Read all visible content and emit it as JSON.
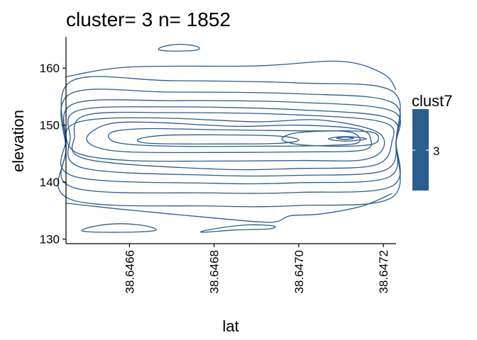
{
  "chart_data": {
    "type": "contour",
    "title": "cluster= 3 n= 1852",
    "xlabel": "lat",
    "ylabel": "elevation",
    "xlim": [
      38.64645,
      38.64723
    ],
    "ylim": [
      129.2,
      165.5
    ],
    "x_ticks": [
      38.6466,
      38.6468,
      38.647,
      38.6472
    ],
    "x_tick_labels": [
      "38.6466",
      "38.6468",
      "38.6470",
      "38.6472"
    ],
    "y_ticks": [
      130,
      140,
      150,
      160
    ],
    "y_tick_labels": [
      "130",
      "140",
      "150",
      "160"
    ],
    "grid": false,
    "legend": {
      "title": "clust7",
      "placement": "right",
      "entries": [
        {
          "label": "3",
          "color": "#2B5D8E"
        }
      ]
    },
    "series_color": "#2B5D8E",
    "density_peak": {
      "lat": 38.64711,
      "elevation": 147.6
    },
    "contours": [
      {
        "level": 1,
        "points": [
          [
            38.64645,
            148
          ],
          [
            38.64648,
            145
          ],
          [
            38.6466,
            143.8
          ],
          [
            38.6468,
            143.7
          ],
          [
            38.647,
            143.8
          ],
          [
            38.64715,
            143.9
          ],
          [
            38.6472,
            146
          ],
          [
            38.64718,
            149
          ],
          [
            38.64705,
            150.9
          ],
          [
            38.6469,
            150.6
          ],
          [
            38.6467,
            151.2
          ],
          [
            38.64655,
            151.2
          ],
          [
            38.64647,
            150.3
          ]
        ]
      },
      {
        "level": 2,
        "points": [
          [
            38.6465,
            148
          ],
          [
            38.64652,
            146.2
          ],
          [
            38.6466,
            145.3
          ],
          [
            38.6468,
            145.2
          ],
          [
            38.647,
            145.3
          ],
          [
            38.64715,
            145.6
          ],
          [
            38.64717,
            147.5
          ],
          [
            38.64714,
            149.3
          ],
          [
            38.647,
            150
          ],
          [
            38.64685,
            149.8
          ],
          [
            38.64665,
            150.5
          ],
          [
            38.64655,
            150.2
          ]
        ]
      },
      {
        "level": 3,
        "points": [
          [
            38.64655,
            148
          ],
          [
            38.64658,
            146.8
          ],
          [
            38.6467,
            146.3
          ],
          [
            38.6469,
            146.3
          ],
          [
            38.64705,
            146.4
          ],
          [
            38.64714,
            146.9
          ],
          [
            38.64712,
            148.8
          ],
          [
            38.647,
            149
          ],
          [
            38.6468,
            149.2
          ],
          [
            38.64665,
            149.4
          ],
          [
            38.64657,
            149
          ]
        ]
      },
      {
        "level": 4,
        "points": [
          [
            38.64662,
            147.5
          ],
          [
            38.64665,
            146.8
          ],
          [
            38.6468,
            146.7
          ],
          [
            38.64695,
            146.8
          ],
          [
            38.647,
            147.4
          ],
          [
            38.64695,
            148.1
          ],
          [
            38.6468,
            148.3
          ],
          [
            38.64668,
            148.2
          ]
        ]
      },
      {
        "level": 5,
        "points": [
          [
            38.64696,
            147.6
          ],
          [
            38.647,
            146.6
          ],
          [
            38.64711,
            146.3
          ],
          [
            38.64718,
            146.8
          ],
          [
            38.64718,
            148.6
          ],
          [
            38.64711,
            149
          ],
          [
            38.647,
            148.7
          ]
        ]
      },
      {
        "level": 6,
        "points": [
          [
            38.64707,
            147.6
          ],
          [
            38.64711,
            147.2
          ],
          [
            38.64716,
            147.6
          ],
          [
            38.64711,
            148.0
          ]
        ]
      },
      {
        "level": 7,
        "points": [
          [
            38.64709,
            147.7
          ],
          [
            38.64711,
            147.5
          ],
          [
            38.64713,
            147.7
          ],
          [
            38.64711,
            147.9
          ]
        ]
      },
      {
        "level": 8,
        "points": [
          [
            38.64647,
            148
          ],
          [
            38.6465,
            144
          ],
          [
            38.6468,
            142.3
          ],
          [
            38.647,
            142.4
          ],
          [
            38.64718,
            143
          ],
          [
            38.64722,
            147
          ],
          [
            38.6472,
            150.5
          ],
          [
            38.647,
            151.8
          ],
          [
            38.6467,
            152.2
          ],
          [
            38.6465,
            151.8
          ]
        ]
      },
      {
        "level": 9,
        "points": [
          [
            38.64646,
            148
          ],
          [
            38.64649,
            142.5
          ],
          [
            38.6468,
            141.2
          ],
          [
            38.647,
            141.2
          ],
          [
            38.6472,
            142
          ],
          [
            38.64723,
            147
          ],
          [
            38.64721,
            151.3
          ],
          [
            38.647,
            152.7
          ],
          [
            38.6467,
            153.2
          ],
          [
            38.64648,
            152.6
          ]
        ]
      },
      {
        "level": 10,
        "points": [
          [
            38.64645,
            147.5
          ],
          [
            38.64647,
            141
          ],
          [
            38.6468,
            139.8
          ],
          [
            38.647,
            139.9
          ],
          [
            38.64721,
            140.8
          ],
          [
            38.64723,
            147
          ],
          [
            38.64722,
            152.5
          ],
          [
            38.647,
            154
          ],
          [
            38.6467,
            154.3
          ],
          [
            38.64647,
            153.8
          ]
        ]
      },
      {
        "level": 11,
        "points": [
          [
            38.64645,
            146
          ],
          [
            38.64647,
            139
          ],
          [
            38.6468,
            138.1
          ],
          [
            38.647,
            138.2
          ],
          [
            38.64722,
            139.3
          ],
          [
            38.64723,
            147
          ],
          [
            38.64722,
            154
          ],
          [
            38.647,
            155.5
          ],
          [
            38.6467,
            155.8
          ],
          [
            38.64646,
            155.5
          ]
        ]
      },
      {
        "level": 12,
        "points": [
          [
            38.64645,
            146
          ],
          [
            38.64646,
            137
          ],
          [
            38.6468,
            135.8
          ],
          [
            38.647,
            135.9
          ],
          [
            38.64722,
            137.3
          ],
          [
            38.64723,
            147
          ],
          [
            38.64722,
            156
          ],
          [
            38.647,
            157.4
          ],
          [
            38.6467,
            157.8
          ],
          [
            38.64646,
            157.6
          ]
        ]
      },
      {
        "level": 13,
        "points": [
          [
            38.64645,
            158.5
          ],
          [
            38.6466,
            160.2
          ],
          [
            38.6469,
            160.4
          ],
          [
            38.6471,
            161.2
          ],
          [
            38.6472,
            159
          ],
          [
            38.64723,
            156.2
          ]
        ],
        "open": true
      },
      {
        "level": 14,
        "points": [
          [
            38.64645,
            136.3
          ],
          [
            38.6466,
            135.1
          ],
          [
            38.6468,
            133.7
          ],
          [
            38.64691,
            133
          ],
          [
            38.64695,
            133.1
          ],
          [
            38.64698,
            134.1
          ],
          [
            38.64705,
            134.4
          ],
          [
            38.64715,
            135.8
          ],
          [
            38.64722,
            138
          ]
        ],
        "open": true
      },
      {
        "level": 15,
        "points": [
          [
            38.64667,
            163.2
          ],
          [
            38.64668,
            163.8
          ],
          [
            38.64672,
            164.2
          ],
          [
            38.64676,
            163.8
          ],
          [
            38.64676,
            163.2
          ],
          [
            38.64671,
            163.0
          ]
        ]
      },
      {
        "level": 16,
        "points": [
          [
            38.64649,
            131.4
          ],
          [
            38.64652,
            132.3
          ],
          [
            38.64658,
            132.7
          ],
          [
            38.64664,
            132.3
          ],
          [
            38.64666,
            131.5
          ],
          [
            38.64658,
            131.2
          ]
        ]
      },
      {
        "level": 17,
        "points": [
          [
            38.64677,
            131.2
          ],
          [
            38.6468,
            131.8
          ],
          [
            38.64688,
            132.5
          ],
          [
            38.64694,
            132.3
          ],
          [
            38.64693,
            131.8
          ],
          [
            38.64685,
            131.6
          ]
        ]
      }
    ]
  }
}
